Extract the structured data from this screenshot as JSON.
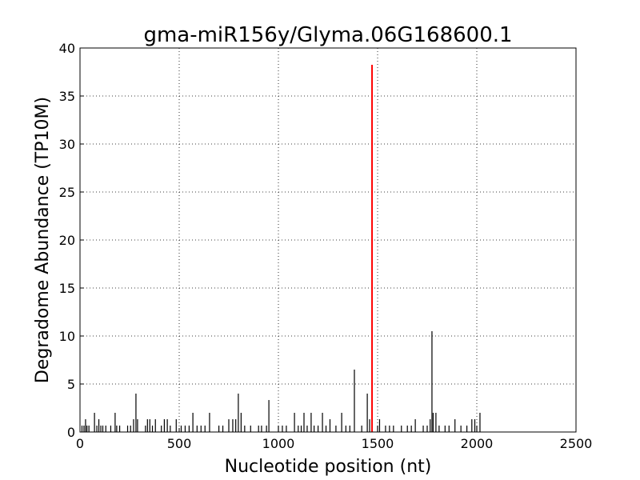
{
  "chart_data": {
    "type": "stem",
    "title": "gma-miR156y/Glyma.06G168600.1",
    "x_label": "Nucleotide position (nt)",
    "y_label": "Degradome Abundance (TP10M)",
    "xlim": [
      0,
      2500
    ],
    "xticks": [
      0,
      500,
      1000,
      1500,
      2000,
      2500
    ],
    "ylim": [
      0,
      40
    ],
    "yticks": [
      0,
      5,
      10,
      15,
      20,
      25,
      30,
      35,
      40
    ],
    "grid": true,
    "series": [
      {
        "color": "#000000",
        "x": [
          10,
          20,
          28,
          35,
          45,
          73,
          85,
          95,
          105,
          115,
          130,
          155,
          177,
          185,
          200,
          240,
          255,
          270,
          282,
          290,
          330,
          340,
          352,
          365,
          380,
          410,
          425,
          440,
          455,
          485,
          510,
          530,
          550,
          569,
          590,
          610,
          630,
          653,
          700,
          720,
          750,
          770,
          785,
          798,
          812,
          830,
          860,
          900,
          915,
          940,
          952,
          1000,
          1020,
          1040,
          1081,
          1100,
          1115,
          1129,
          1145,
          1165,
          1180,
          1200,
          1222,
          1240,
          1260,
          1290,
          1319,
          1340,
          1360,
          1383,
          1420,
          1448,
          1460,
          1500,
          1510,
          1540,
          1560,
          1580,
          1620,
          1650,
          1670,
          1690,
          1730,
          1750,
          1765,
          1774,
          1780,
          1794,
          1810,
          1840,
          1860,
          1890,
          1920,
          1950,
          1975,
          1990,
          2000,
          2016
        ],
        "values": [
          0.67,
          0.67,
          1.33,
          0.67,
          0.67,
          2,
          0.67,
          1.33,
          0.67,
          0.67,
          0.67,
          0.67,
          2,
          0.67,
          0.67,
          0.67,
          0.67,
          1.33,
          4,
          1.33,
          0.67,
          1.33,
          1.33,
          0.67,
          1.33,
          0.67,
          1.33,
          1.33,
          0.67,
          1.33,
          0.67,
          0.67,
          0.67,
          2,
          0.67,
          0.67,
          0.67,
          2,
          0.67,
          0.67,
          1.33,
          1.33,
          1.33,
          4,
          2,
          0.67,
          0.67,
          0.67,
          0.67,
          0.67,
          3.33,
          0.67,
          0.67,
          0.67,
          2,
          0.67,
          0.67,
          2,
          0.67,
          2,
          0.67,
          0.67,
          2,
          0.67,
          1.33,
          0.67,
          2,
          0.67,
          0.67,
          6.5,
          0.67,
          4,
          1.33,
          0.67,
          1.33,
          0.67,
          0.67,
          0.67,
          0.67,
          0.67,
          0.67,
          1.33,
          0.67,
          0.67,
          1.33,
          10.5,
          2,
          2,
          0.67,
          0.67,
          0.67,
          1.33,
          0.67,
          0.67,
          1.33,
          1.33,
          0.67,
          2
        ]
      },
      {
        "color": "#ff0000",
        "x": [
          1472
        ],
        "values": [
          38.25
        ]
      }
    ]
  }
}
